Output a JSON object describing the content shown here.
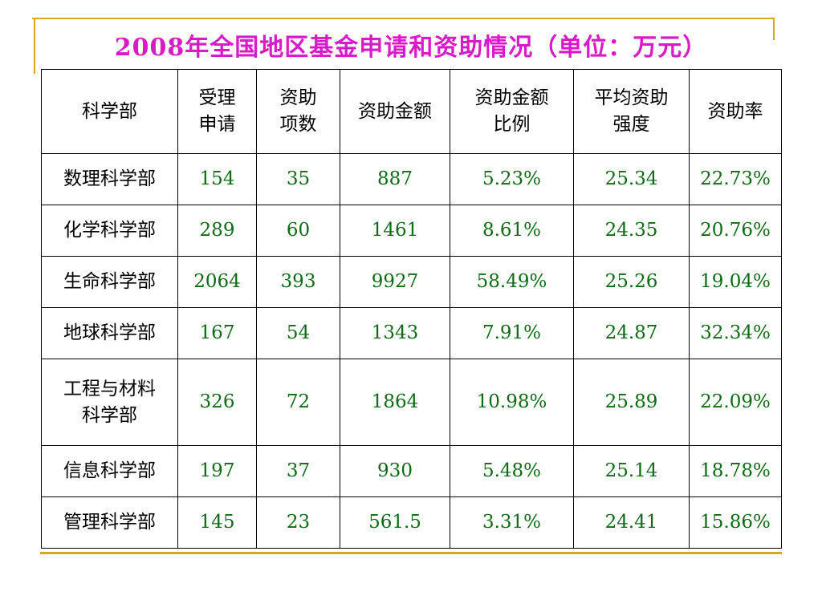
{
  "title": "2008年全国地区基金申请和资助情况（单位：万元）",
  "table": {
    "headers": [
      [
        "科学部"
      ],
      [
        "受理",
        "申请"
      ],
      [
        "资助",
        "项数"
      ],
      [
        "资助金额"
      ],
      [
        "资助金额",
        "比例"
      ],
      [
        "平均资助",
        "强度"
      ],
      [
        "资助率"
      ]
    ],
    "rows": [
      {
        "name": [
          "数理科学部"
        ],
        "cells": [
          "154",
          "35",
          "887",
          "5.23%",
          "25.34",
          "22.73%"
        ]
      },
      {
        "name": [
          "化学科学部"
        ],
        "cells": [
          "289",
          "60",
          "1461",
          "8.61%",
          "24.35",
          "20.76%"
        ]
      },
      {
        "name": [
          "生命科学部"
        ],
        "cells": [
          "2064",
          "393",
          "9927",
          "58.49%",
          "25.26",
          "19.04%"
        ]
      },
      {
        "name": [
          "地球科学部"
        ],
        "cells": [
          "167",
          "54",
          "1343",
          "7.91%",
          "24.87",
          "32.34%"
        ]
      },
      {
        "name": [
          "工程与材料",
          "科学部"
        ],
        "cells": [
          "326",
          "72",
          "1864",
          "10.98%",
          "25.89",
          "22.09%"
        ]
      },
      {
        "name": [
          "信息科学部"
        ],
        "cells": [
          "197",
          "37",
          "930",
          "5.48%",
          "25.14",
          "18.78%"
        ]
      },
      {
        "name": [
          "管理科学部"
        ],
        "cells": [
          "145",
          "23",
          "561.5",
          "3.31%",
          "24.41",
          "15.86%"
        ]
      }
    ]
  },
  "colors": {
    "title": "#d81ac8",
    "values": "#0d6b14",
    "accent": "#d8a81c",
    "border": "#000000"
  }
}
